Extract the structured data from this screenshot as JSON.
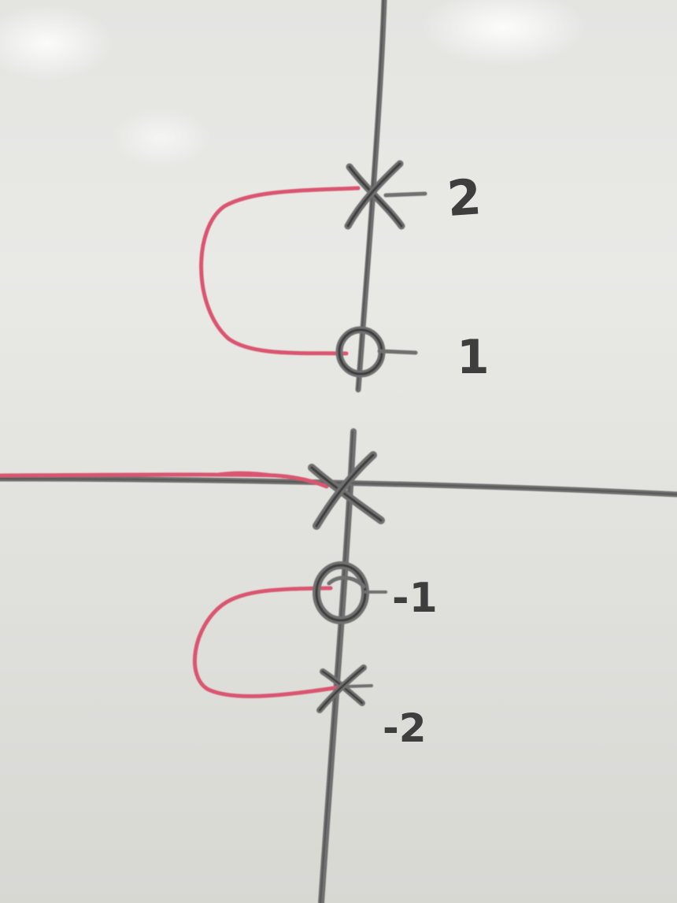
{
  "photo": {
    "subject": "whiteboard",
    "ink_colors": {
      "black_marker": "#3d3d3d",
      "red_marker": "#d9556f"
    }
  },
  "labels": {
    "upper_x_value": "2",
    "upper_o_value": "1",
    "lower_o_value": "-1",
    "lower_x_value": "-2"
  }
}
